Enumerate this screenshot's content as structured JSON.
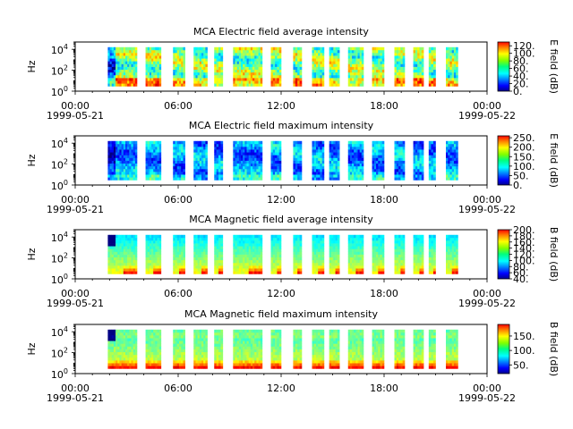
{
  "chart_data": [
    {
      "type": "heatmap",
      "title": "MCA  Electric field average intensity",
      "ylabel": "Hz",
      "y_scale": "log",
      "ylim": [
        1,
        50000
      ],
      "y_ticks": [
        {
          "base": "10",
          "exp": "0"
        },
        {
          "base": "10",
          "exp": "2"
        },
        {
          "base": "10",
          "exp": "4"
        }
      ],
      "x_ticks": [
        "00:00",
        "06:00",
        "12:00",
        "18:00",
        "00:00"
      ],
      "x_dates": [
        "1999-05-21",
        "1999-05-22"
      ],
      "x_range_hours": [
        0,
        24
      ],
      "colorbar_label": "E field (dB)",
      "colorbar_range": [
        0,
        130
      ],
      "colorbar_ticks": [
        "0.",
        "20.",
        "40.",
        "60.",
        "80.",
        "100.",
        "120."
      ]
    },
    {
      "type": "heatmap",
      "title": "MCA  Electric field maximum intensity",
      "ylabel": "Hz",
      "y_scale": "log",
      "ylim": [
        1,
        50000
      ],
      "y_ticks": [
        {
          "base": "10",
          "exp": "0"
        },
        {
          "base": "10",
          "exp": "2"
        },
        {
          "base": "10",
          "exp": "4"
        }
      ],
      "x_ticks": [
        "00:00",
        "06:00",
        "12:00",
        "18:00",
        "00:00"
      ],
      "x_dates": [
        "1999-05-21",
        "1999-05-22"
      ],
      "x_range_hours": [
        0,
        24
      ],
      "colorbar_label": "E field (dB)",
      "colorbar_range": [
        0,
        260
      ],
      "colorbar_ticks": [
        "0.",
        "50.",
        "100.",
        "150.",
        "200.",
        "250."
      ]
    },
    {
      "type": "heatmap",
      "title": "MCA  Magnetic field average intensity",
      "ylabel": "Hz",
      "y_scale": "log",
      "ylim": [
        1,
        50000
      ],
      "y_ticks": [
        {
          "base": "10",
          "exp": "0"
        },
        {
          "base": "10",
          "exp": "2"
        },
        {
          "base": "10",
          "exp": "4"
        }
      ],
      "x_ticks": [
        "00:00",
        "06:00",
        "12:00",
        "18:00",
        "00:00"
      ],
      "x_dates": [
        "1999-05-21",
        "1999-05-22"
      ],
      "x_range_hours": [
        0,
        24
      ],
      "colorbar_label": "B field (dB)",
      "colorbar_range": [
        40,
        200
      ],
      "colorbar_ticks": [
        "40.",
        "60.",
        "80.",
        "100.",
        "120.",
        "140.",
        "160.",
        "180.",
        "200."
      ]
    },
    {
      "type": "heatmap",
      "title": "MCA  Magnetic field maximum intensity",
      "ylabel": "Hz",
      "y_scale": "log",
      "ylim": [
        1,
        50000
      ],
      "y_ticks": [
        {
          "base": "10",
          "exp": "0"
        },
        {
          "base": "10",
          "exp": "2"
        },
        {
          "base": "10",
          "exp": "4"
        }
      ],
      "x_ticks": [
        "00:00",
        "06:00",
        "12:00",
        "18:00",
        "00:00"
      ],
      "x_dates": [
        "1999-05-21",
        "1999-05-22"
      ],
      "x_range_hours": [
        0,
        24
      ],
      "colorbar_label": "B field (dB)",
      "colorbar_range": [
        20,
        190
      ],
      "colorbar_ticks": [
        "50.",
        "100.",
        "150."
      ]
    }
  ],
  "data_segments_hours": [
    [
      1.9,
      3.6
    ],
    [
      4.1,
      5.0
    ],
    [
      5.7,
      6.4
    ],
    [
      6.9,
      7.7
    ],
    [
      8.1,
      8.6
    ],
    [
      9.2,
      10.9
    ],
    [
      11.4,
      12.0
    ],
    [
      12.7,
      13.2
    ],
    [
      13.8,
      14.5
    ],
    [
      14.8,
      15.4
    ],
    [
      15.9,
      16.8
    ],
    [
      17.3,
      18.0
    ],
    [
      18.6,
      19.2
    ],
    [
      19.7,
      20.3
    ],
    [
      20.6,
      21.0
    ],
    [
      21.6,
      22.3
    ]
  ]
}
